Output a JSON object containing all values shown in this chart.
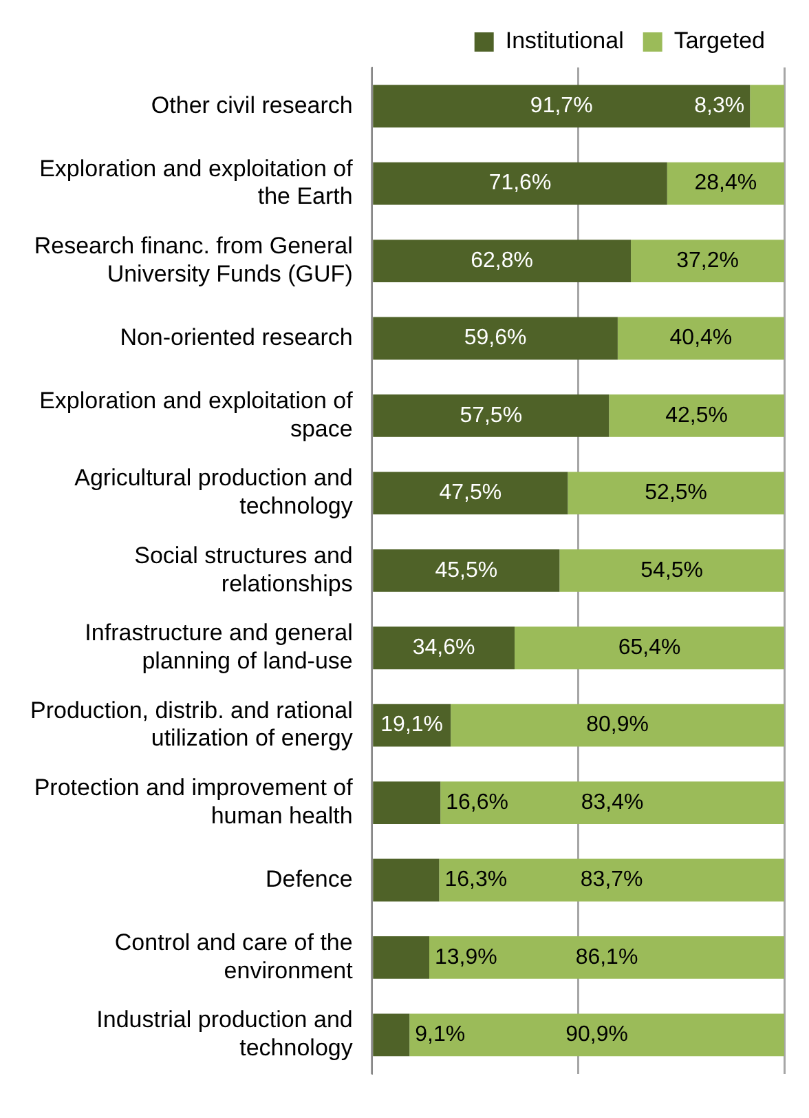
{
  "chart_data": {
    "type": "bar",
    "orientation": "horizontal",
    "stacked": true,
    "legend": "top",
    "grid": "x",
    "xlim": [
      0,
      100
    ],
    "xticks": [
      {
        "value": 0,
        "label": null
      },
      {
        "value": 50,
        "label": null
      },
      {
        "value": 100,
        "label": null
      }
    ],
    "tick_labels": "y",
    "categories": [
      "Other civil research",
      "Exploration and exploitation of the Earth",
      "Research financ. from General University Funds (GUF)",
      "Non-oriented research",
      "Exploration and exploitation of space",
      "Agricultural production and technology",
      "Social structures and relationships",
      "Infrastructure and general planning of land-use",
      "Production, distrib. and rational utilization of energy",
      "Protection and improvement of human health",
      "Defence",
      "Control and care of the environment",
      "Industrial production and technology"
    ],
    "series": [
      {
        "name": "Institutional",
        "color": "#4f6228",
        "values": [
          91.7,
          71.6,
          62.8,
          59.6,
          57.5,
          47.5,
          45.5,
          34.6,
          19.1,
          16.6,
          16.3,
          13.9,
          9.1
        ],
        "value_labels": [
          "91,7%",
          "71,6%",
          "62,8%",
          "59,6%",
          "57,5%",
          "47,5%",
          "45,5%",
          "34,6%",
          "19,1%",
          "16,6%",
          "16,3%",
          "13,9%",
          "9,1%"
        ]
      },
      {
        "name": "Targeted",
        "color": "#9bbb59",
        "values": [
          8.3,
          28.4,
          37.2,
          40.4,
          42.5,
          52.5,
          54.5,
          65.4,
          80.9,
          83.4,
          83.7,
          86.1,
          90.9
        ],
        "value_labels": [
          "8,3%",
          "28,4%",
          "37,2%",
          "40,4%",
          "42,5%",
          "52,5%",
          "54,5%",
          "65,4%",
          "80,9%",
          "83,4%",
          "83,7%",
          "86,1%",
          "90,9%"
        ]
      }
    ]
  }
}
